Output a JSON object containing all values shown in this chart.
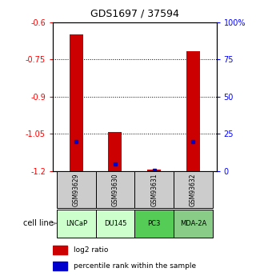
{
  "title": "GDS1697 / 37594",
  "samples": [
    "GSM93629",
    "GSM93630",
    "GSM93631",
    "GSM93632"
  ],
  "cell_lines": [
    "LNCaP",
    "DU145",
    "PC3",
    "MDA-2A"
  ],
  "cell_line_colors": [
    "#ccffcc",
    "#ccffcc",
    "#55cc55",
    "#88cc88"
  ],
  "log2_ratio": [
    -0.648,
    -1.042,
    -1.195,
    -0.718
  ],
  "percentile_rank": [
    20.0,
    5.0,
    0.5,
    20.0
  ],
  "ylim_left": [
    -1.2,
    -0.6
  ],
  "ylim_right": [
    0,
    100
  ],
  "yticks_left": [
    -1.2,
    -1.05,
    -0.9,
    -0.75,
    -0.6
  ],
  "yticks_right": [
    0,
    25,
    50,
    75,
    100
  ],
  "ytick_labels_left": [
    "-1.2",
    "-1.05",
    "-0.9",
    "-0.75",
    "-0.6"
  ],
  "ytick_labels_right": [
    "0",
    "25",
    "50",
    "75",
    "100%"
  ],
  "gridlines_at": [
    -1.05,
    -0.9,
    -0.75
  ],
  "bar_color": "#cc0000",
  "percentile_color": "#0000cc",
  "bar_bottom": -1.2,
  "bar_width": 0.35,
  "sample_gsm_bg": "#cccccc",
  "legend_items": [
    "log2 ratio",
    "percentile rank within the sample"
  ]
}
